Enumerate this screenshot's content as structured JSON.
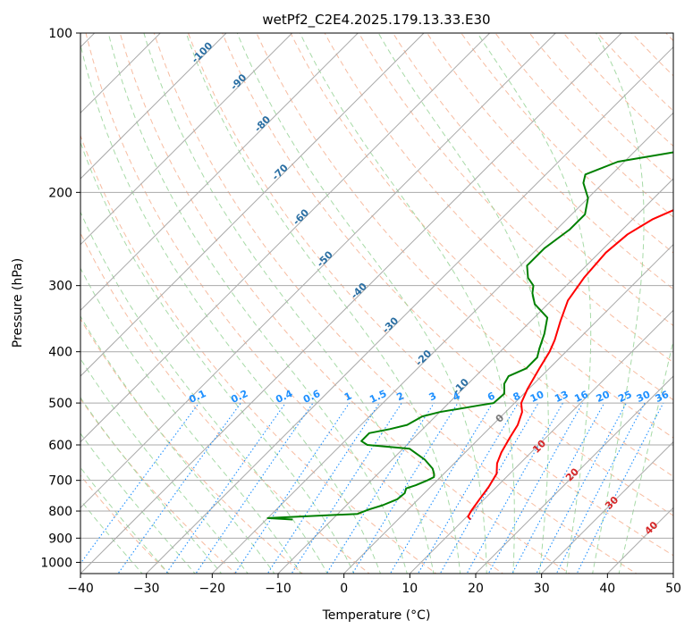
{
  "chart_data": {
    "type": "line",
    "title": "wetPf2_C2E4.2025.179.13.33.E30",
    "xlabel": "Temperature (°C)",
    "ylabel": "Pressure (hPa)",
    "xlim": [
      -40,
      50
    ],
    "ylim": [
      1050,
      100
    ],
    "y_scale": "log",
    "x_ticks": [
      "−40",
      "−30",
      "−20",
      "−10",
      "0",
      "10",
      "20",
      "30",
      "40",
      "50"
    ],
    "y_ticks": [
      {
        "value": 1000,
        "label": "1000"
      },
      {
        "value": 900,
        "label": "900"
      },
      {
        "value": 800,
        "label": "800"
      },
      {
        "value": 700,
        "label": "700"
      },
      {
        "value": 600,
        "label": "600"
      },
      {
        "value": 500,
        "label": "500"
      },
      {
        "value": 400,
        "label": "400"
      },
      {
        "value": 300,
        "label": "300"
      },
      {
        "value": 200,
        "label": "200"
      },
      {
        "value": 100,
        "label": "100"
      }
    ],
    "grid": true,
    "colors": {
      "temperature": "#ff0000",
      "dewpoint": "#008000",
      "isotherm": "#a9a9a9",
      "dry_adiabat": "#f4a582",
      "moist_adiabat": "#98d398",
      "mixing_ratio": "#1e90ff",
      "isotherm_label": "#2b6fa3",
      "moist_label": "#d62728"
    },
    "series": [
      {
        "name": "",
        "role": "temperature",
        "points": [
          [
            11.0,
            830
          ],
          [
            10.2,
            820
          ],
          [
            9.8,
            800
          ],
          [
            9.3,
            760
          ],
          [
            8.8,
            720
          ],
          [
            8.0,
            680
          ],
          [
            6.5,
            650
          ],
          [
            5.5,
            620
          ],
          [
            4.5,
            580
          ],
          [
            3.8,
            550
          ],
          [
            2.5,
            520
          ],
          [
            1.0,
            500
          ],
          [
            -0.2,
            470
          ],
          [
            -1.5,
            430
          ],
          [
            -2.5,
            400
          ],
          [
            -3.5,
            380
          ],
          [
            -5.5,
            350
          ],
          [
            -7.5,
            320
          ],
          [
            -8.5,
            290
          ],
          [
            -9.0,
            260
          ],
          [
            -8.5,
            240
          ],
          [
            -7.0,
            225
          ],
          [
            -5.0,
            215
          ],
          [
            -2.5,
            205
          ],
          [
            0.5,
            195
          ],
          [
            2.5,
            185
          ],
          [
            4.5,
            170
          ],
          [
            6.0,
            155
          ],
          [
            7.5,
            140
          ],
          [
            9.0,
            128
          ],
          [
            11.0,
            117
          ],
          [
            13.0,
            110
          ],
          [
            15.0,
            104
          ],
          [
            16.0,
            100
          ]
        ]
      },
      {
        "name": "",
        "role": "dewpoint",
        "points": [
          [
            -16.0,
            830
          ],
          [
            -20.0,
            825
          ],
          [
            -7.0,
            810
          ],
          [
            -6.0,
            795
          ],
          [
            -4.5,
            780
          ],
          [
            -3.2,
            760
          ],
          [
            -3.0,
            740
          ],
          [
            -3.5,
            725
          ],
          [
            -2.5,
            715
          ],
          [
            -1.5,
            700
          ],
          [
            -1.0,
            690
          ],
          [
            -1.5,
            680
          ],
          [
            -2.5,
            665
          ],
          [
            -5.0,
            640
          ],
          [
            -9.0,
            610
          ],
          [
            -16.0,
            600
          ],
          [
            -17.5,
            590
          ],
          [
            -17.5,
            570
          ],
          [
            -15.0,
            560
          ],
          [
            -13.0,
            550
          ],
          [
            -12.0,
            530
          ],
          [
            -10.0,
            520
          ],
          [
            -5.0,
            505
          ],
          [
            -3.2,
            500
          ],
          [
            -3.0,
            480
          ],
          [
            -4.5,
            460
          ],
          [
            -5.0,
            445
          ],
          [
            -3.5,
            430
          ],
          [
            -3.5,
            410
          ],
          [
            -4.5,
            395
          ],
          [
            -6.0,
            370
          ],
          [
            -8.0,
            345
          ],
          [
            -12.0,
            325
          ],
          [
            -14.0,
            310
          ],
          [
            -15.0,
            300
          ],
          [
            -17.0,
            290
          ],
          [
            -19.0,
            275
          ],
          [
            -19.0,
            255
          ],
          [
            -18.0,
            235
          ],
          [
            -18.0,
            220
          ],
          [
            -20.0,
            205
          ],
          [
            -23.0,
            192
          ],
          [
            -24.0,
            185
          ],
          [
            -21.0,
            175
          ],
          [
            -14.0,
            168
          ],
          [
            -11.0,
            160
          ],
          [
            -9.0,
            150
          ],
          [
            -7.0,
            140
          ],
          [
            -5.0,
            130
          ],
          [
            -4.0,
            125
          ],
          [
            -2.0,
            115
          ],
          [
            -0.5,
            107
          ],
          [
            0.0,
            100
          ]
        ]
      }
    ],
    "isotherm_labels": [
      {
        "t": -100,
        "p": 110,
        "text": "-100"
      },
      {
        "t": -90,
        "p": 125,
        "text": "-90"
      },
      {
        "t": -80,
        "p": 150,
        "text": "-80"
      },
      {
        "t": -70,
        "p": 185,
        "text": "-70"
      },
      {
        "t": -60,
        "p": 225,
        "text": "-60"
      },
      {
        "t": -50,
        "p": 270,
        "text": "-50"
      },
      {
        "t": -40,
        "p": 310,
        "text": "-40"
      },
      {
        "t": -30,
        "p": 360,
        "text": "-30"
      },
      {
        "t": -20,
        "p": 415,
        "text": "-20"
      },
      {
        "t": -10,
        "p": 470,
        "text": "-10"
      }
    ],
    "mixing_ratio_values": [
      0.1,
      0.2,
      0.4,
      0.6,
      1,
      1.5,
      2,
      3,
      4,
      6,
      8,
      10,
      13,
      16,
      20,
      25,
      30,
      36
    ],
    "mixing_ratio_labels": [
      "0.1",
      "0.2",
      "0.4",
      "0.6",
      "1",
      "1.5",
      "2",
      "3",
      "4",
      "6",
      "8",
      "10",
      "13",
      "16",
      "20",
      "25",
      "30",
      "36"
    ],
    "moist_adiabat_labels": [
      {
        "t": 24,
        "p": 540,
        "text": "0",
        "color": "#777777"
      },
      {
        "t": 30,
        "p": 610,
        "text": "10",
        "color": "#d62728"
      },
      {
        "t": 35,
        "p": 690,
        "text": "20",
        "color": "#d62728"
      },
      {
        "t": 41,
        "p": 780,
        "text": "30",
        "color": "#d62728"
      },
      {
        "t": 47,
        "p": 870,
        "text": "40",
        "color": "#d62728"
      }
    ]
  }
}
